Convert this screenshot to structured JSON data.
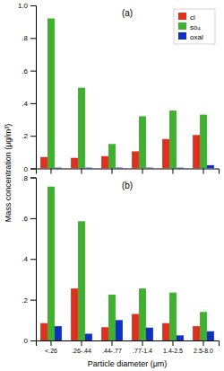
{
  "chart_data": [
    {
      "type": "bar",
      "title": "(a)",
      "ylabel": "Mass concentration (μg/m³)",
      "categories": [
        null,
        null,
        null,
        null,
        null,
        null
      ],
      "series": [
        {
          "name": "cl",
          "color": "#e03020",
          "values": [
            0.07,
            0.065,
            0.075,
            0.105,
            0.18,
            0.205
          ]
        },
        {
          "name": "so₄",
          "color": "#40b030",
          "values": [
            0.92,
            0.495,
            0.15,
            0.32,
            0.355,
            0.33
          ]
        },
        {
          "name": "oxal",
          "color": "#1030c0",
          "values": [
            0.005,
            0.005,
            0.005,
            0.005,
            0.005,
            0.02
          ]
        }
      ],
      "ylim": [
        0.0,
        1.0
      ],
      "yticks": [
        0,
        {
          "value": 0.2,
          "label": ".2"
        },
        {
          "value": 0.4,
          "label": ".4"
        },
        {
          "value": 0.6,
          "label": ".6"
        },
        {
          "value": 0.8,
          "label": ".8"
        },
        {
          "value": 1.0,
          "label": "1.0"
        }
      ],
      "legend": "upper right"
    },
    {
      "type": "bar",
      "title": "(b)",
      "xlabel": "Particle diameter (μm)",
      "categories": [
        "<.26",
        ".26-.44",
        ".44-.77",
        ".77-1.4",
        "1.4-2.5",
        "2.5-8.0"
      ],
      "series": [
        {
          "color": "#e03020",
          "values": [
            0.085,
            0.255,
            0.065,
            0.13,
            0.085,
            0.07
          ]
        },
        {
          "color": "#40b030",
          "values": [
            0.755,
            0.585,
            0.225,
            0.255,
            0.235,
            0.14
          ]
        },
        {
          "color": "#1030c0",
          "values": [
            0.07,
            0.033,
            0.1,
            0.063,
            0.025,
            0.045
          ]
        }
      ],
      "ylim": [
        0.0,
        0.8
      ],
      "yticks": [
        0,
        {
          "value": 0.2,
          "label": ".2"
        },
        {
          "value": 0.4,
          "label": ".4"
        },
        {
          "value": 0.6,
          "label": ".6"
        },
        {
          "value": 0.8,
          "label": ".8"
        }
      ]
    }
  ]
}
